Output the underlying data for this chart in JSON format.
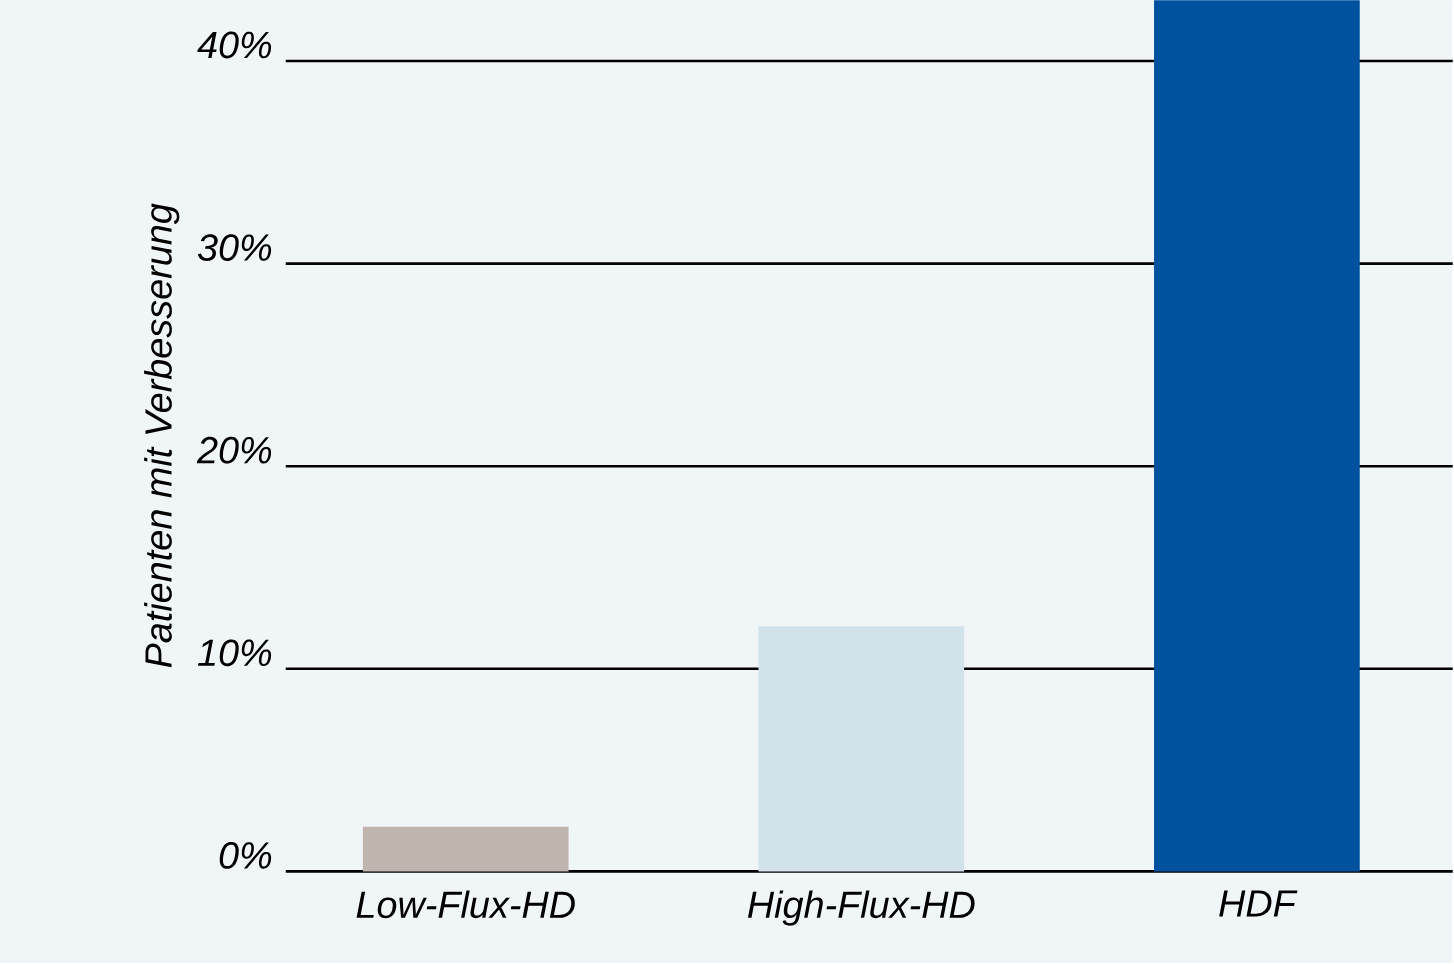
{
  "chart_data": {
    "type": "bar",
    "ylabel": "Patienten mit Verbesserung",
    "categories": [
      "Low-Flux-HD",
      "High-Flux-HD",
      "HDF"
    ],
    "values": [
      2.2,
      12.1,
      43
    ],
    "colors": [
      "#c0b4ae",
      "#d2e2eb",
      "#00519e"
    ],
    "ylim": [
      0,
      43
    ],
    "yticks": [
      {
        "value": 0,
        "label": "0%"
      },
      {
        "value": 10,
        "label": "10%"
      },
      {
        "value": 20,
        "label": "20%"
      },
      {
        "value": 30,
        "label": "30%"
      },
      {
        "value": 40,
        "label": "40%"
      }
    ],
    "grid": "y"
  }
}
